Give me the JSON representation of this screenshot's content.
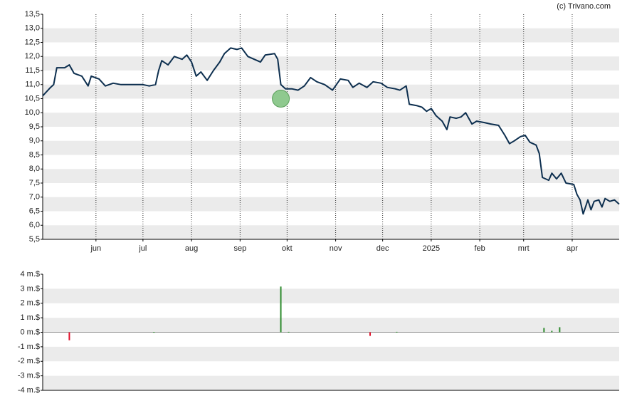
{
  "source": "(c) Trivano.com",
  "chart_data": [
    {
      "type": "line",
      "series": [
        {
          "color": "#0d2f4f",
          "x": [
            0,
            5,
            7,
            9,
            14,
            17,
            20,
            25,
            29,
            31,
            36,
            40,
            45,
            50,
            55,
            59,
            64,
            68,
            72,
            74,
            76,
            80,
            84,
            89,
            92,
            95,
            98,
            101,
            105,
            109,
            113,
            116,
            120,
            124,
            127,
            131,
            135,
            139,
            142,
            148,
            150,
            152,
            155,
            159,
            163,
            167,
            171,
            175,
            180,
            185,
            190,
            195,
            198,
            202,
            207,
            211,
            216,
            220,
            225,
            228,
            232,
            234,
            239,
            242,
            245,
            248,
            251,
            255,
            258,
            260,
            264,
            267,
            270,
            274,
            277,
            282,
            286,
            291,
            295,
            298,
            301,
            305,
            308,
            311,
            315,
            317,
            319,
            323,
            325,
            328,
            331,
            334,
            339,
            341,
            343,
            345,
            348,
            350,
            352,
            355,
            357,
            359,
            362,
            365,
            368
          ],
          "values": [
            10.6,
            10.9,
            11.0,
            11.6,
            11.6,
            11.7,
            11.4,
            11.3,
            10.95,
            11.3,
            11.2,
            10.95,
            11.05,
            11.0,
            11.0,
            11.0,
            11.0,
            10.95,
            11.0,
            11.5,
            11.85,
            11.7,
            12.0,
            11.9,
            12.05,
            11.8,
            11.3,
            11.45,
            11.15,
            11.5,
            11.8,
            12.1,
            12.3,
            12.25,
            12.3,
            12.0,
            11.9,
            11.8,
            12.05,
            12.1,
            11.9,
            11.0,
            10.85,
            10.85,
            10.8,
            10.95,
            11.25,
            11.1,
            11.0,
            10.8,
            11.2,
            11.15,
            10.9,
            11.05,
            10.9,
            11.1,
            11.05,
            10.9,
            10.85,
            10.8,
            10.95,
            10.3,
            10.25,
            10.2,
            10.05,
            10.15,
            9.9,
            9.7,
            9.4,
            9.85,
            9.8,
            9.85,
            10.0,
            9.6,
            9.7,
            9.65,
            9.6,
            9.55,
            9.2,
            8.9,
            9.0,
            9.15,
            9.2,
            8.95,
            8.85,
            8.55,
            7.7,
            7.6,
            7.85,
            7.65,
            7.85,
            7.5,
            7.45,
            7.1,
            6.9,
            6.4,
            6.9,
            6.55,
            6.85,
            6.9,
            6.65,
            6.95,
            6.85,
            6.9,
            6.75
          ]
        }
      ],
      "marker": {
        "x": 152,
        "value": 10.5,
        "color": "#8fc98f"
      },
      "xlim": [
        0,
        368
      ],
      "xticks": [
        {
          "value": 34,
          "label": "jun"
        },
        {
          "value": 64,
          "label": "jul"
        },
        {
          "value": 95,
          "label": "aug"
        },
        {
          "value": 126,
          "label": "sep"
        },
        {
          "value": 156,
          "label": "okt"
        },
        {
          "value": 187,
          "label": "nov"
        },
        {
          "value": 217,
          "label": "dec"
        },
        {
          "value": 248,
          "label": "2025"
        },
        {
          "value": 279,
          "label": "feb"
        },
        {
          "value": 307,
          "label": "mrt"
        },
        {
          "value": 338,
          "label": "apr"
        }
      ],
      "ylim": [
        5.5,
        13.5
      ],
      "yticks": [
        {
          "value": 5.5,
          "label": "5,5"
        },
        {
          "value": 6,
          "label": "6,0"
        },
        {
          "value": 6.5,
          "label": "6,5"
        },
        {
          "value": 7,
          "label": "7,0"
        },
        {
          "value": 7.5,
          "label": "7,5"
        },
        {
          "value": 8,
          "label": "8,0"
        },
        {
          "value": 8.5,
          "label": "8,5"
        },
        {
          "value": 9,
          "label": "9,0"
        },
        {
          "value": 9.5,
          "label": "9,5"
        },
        {
          "value": 10,
          "label": "10,0"
        },
        {
          "value": 10.5,
          "label": "10,5"
        },
        {
          "value": 11,
          "label": "11,0"
        },
        {
          "value": 11.5,
          "label": "11,5"
        },
        {
          "value": 12,
          "label": "12,0"
        },
        {
          "value": 12.5,
          "label": "12,5"
        },
        {
          "value": 13,
          "label": "13,0"
        },
        {
          "value": 13.5,
          "label": "13,5"
        }
      ],
      "grid": true
    },
    {
      "type": "bar",
      "x": [
        17,
        71,
        152,
        157,
        209,
        226,
        320,
        325,
        330
      ],
      "values": [
        -0.55,
        0.02,
        3.15,
        0.03,
        -0.25,
        0.03,
        0.3,
        0.1,
        0.35
      ],
      "up_color": "#2e8b2e",
      "down_color": "#e0102a",
      "xlim": [
        0,
        368
      ],
      "ylim": [
        -4,
        4
      ],
      "yticks": [
        {
          "value": -4,
          "label": "-4 m.$"
        },
        {
          "value": -3,
          "label": "-3 m.$"
        },
        {
          "value": -2,
          "label": "-2 m.$"
        },
        {
          "value": -1,
          "label": "-1 m.$"
        },
        {
          "value": 0,
          "label": "0 m.$"
        },
        {
          "value": 1,
          "label": "1 m.$"
        },
        {
          "value": 2,
          "label": "2 m.$"
        },
        {
          "value": 3,
          "label": "3 m.$"
        },
        {
          "value": 4,
          "label": "4 m.$"
        }
      ]
    }
  ]
}
